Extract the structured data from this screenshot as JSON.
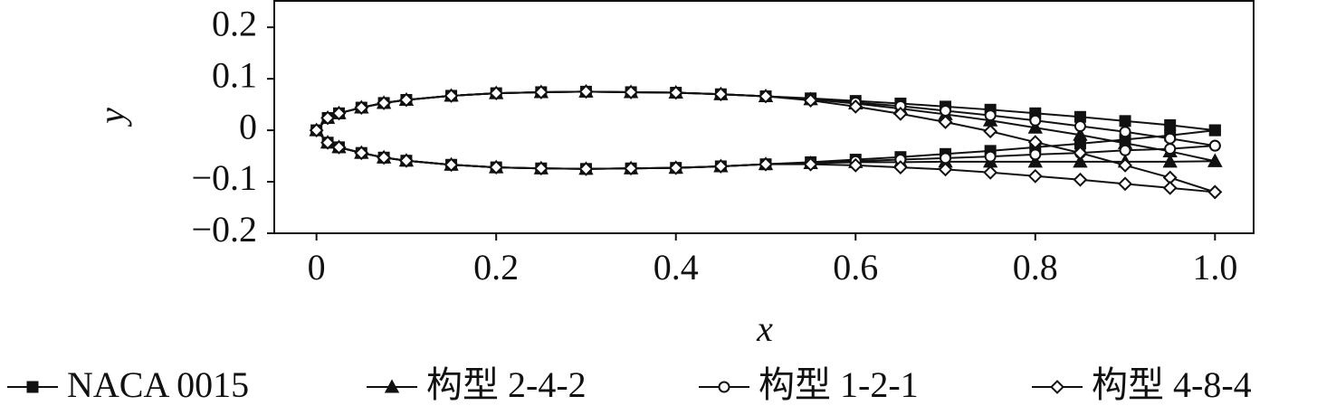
{
  "chart_data": {
    "type": "line",
    "x_label": "x",
    "y_label": "y",
    "x": [
      1.0,
      0.95,
      0.9,
      0.85,
      0.8,
      0.75,
      0.7,
      0.65,
      0.6,
      0.55,
      0.5,
      0.45,
      0.4,
      0.35,
      0.3,
      0.25,
      0.2,
      0.15,
      0.1,
      0.075,
      0.05,
      0.025,
      0.0125,
      0,
      0.0125,
      0.025,
      0.05,
      0.075,
      0.1,
      0.15,
      0.2,
      0.25,
      0.3,
      0.35,
      0.4,
      0.45,
      0.5,
      0.55,
      0.6,
      0.65,
      0.7,
      0.75,
      0.8,
      0.85,
      0.9,
      0.95,
      1.0
    ],
    "series": [
      {
        "name": "NACA 0015",
        "color": "#111111",
        "marker": "square",
        "values": [
          0,
          0.01,
          0.018,
          0.026,
          0.033,
          0.04,
          0.046,
          0.052,
          0.057,
          0.062,
          0.066,
          0.07,
          0.073,
          0.074,
          0.075,
          0.074,
          0.072,
          0.067,
          0.059,
          0.053,
          0.044,
          0.033,
          0.024,
          0,
          -0.024,
          -0.033,
          -0.044,
          -0.053,
          -0.059,
          -0.067,
          -0.072,
          -0.074,
          -0.075,
          -0.074,
          -0.073,
          -0.07,
          -0.066,
          -0.062,
          -0.057,
          -0.052,
          -0.046,
          -0.04,
          -0.033,
          -0.026,
          -0.018,
          -0.01,
          0
        ]
      },
      {
        "name": "构型 2-4-2",
        "color": "#111111",
        "marker": "triangle",
        "values": [
          -0.06,
          -0.041,
          -0.025,
          -0.009,
          0.005,
          0.019,
          0.031,
          0.042,
          0.052,
          0.06,
          0.066,
          0.07,
          0.073,
          0.074,
          0.075,
          0.074,
          0.072,
          0.067,
          0.059,
          0.053,
          0.044,
          0.033,
          0.024,
          0,
          -0.024,
          -0.033,
          -0.044,
          -0.053,
          -0.059,
          -0.067,
          -0.072,
          -0.074,
          -0.075,
          -0.074,
          -0.073,
          -0.07,
          -0.066,
          -0.064,
          -0.062,
          -0.062,
          -0.061,
          -0.061,
          -0.061,
          -0.061,
          -0.061,
          -0.061,
          -0.06
        ]
      },
      {
        "name": "构型 1-2-1",
        "color": "#111111",
        "marker": "circle",
        "values": [
          -0.03,
          -0.016,
          -0.003,
          0.008,
          0.019,
          0.029,
          0.038,
          0.047,
          0.054,
          0.061,
          0.066,
          0.07,
          0.073,
          0.074,
          0.075,
          0.074,
          0.072,
          0.067,
          0.059,
          0.053,
          0.044,
          0.033,
          0.024,
          0,
          -0.024,
          -0.033,
          -0.044,
          -0.053,
          -0.059,
          -0.067,
          -0.072,
          -0.074,
          -0.075,
          -0.074,
          -0.073,
          -0.07,
          -0.066,
          -0.063,
          -0.06,
          -0.057,
          -0.054,
          -0.051,
          -0.047,
          -0.044,
          -0.039,
          -0.036,
          -0.03
        ]
      },
      {
        "name": "构型 4-8-4",
        "color": "#111111",
        "marker": "diamond",
        "values": [
          -0.12,
          -0.092,
          -0.068,
          -0.044,
          -0.023,
          -0.002,
          0.016,
          0.032,
          0.046,
          0.058,
          0.066,
          0.07,
          0.073,
          0.074,
          0.075,
          0.074,
          0.072,
          0.067,
          0.059,
          0.053,
          0.044,
          0.033,
          0.024,
          0,
          -0.024,
          -0.033,
          -0.044,
          -0.053,
          -0.059,
          -0.067,
          -0.072,
          -0.074,
          -0.075,
          -0.074,
          -0.073,
          -0.07,
          -0.066,
          -0.066,
          -0.068,
          -0.072,
          -0.076,
          -0.082,
          -0.089,
          -0.096,
          -0.104,
          -0.112,
          -0.12
        ]
      }
    ],
    "xlim": [
      -0.047,
      1.043
    ],
    "ylim": [
      -0.2,
      0.253
    ],
    "xticks": [
      0,
      0.2,
      0.4,
      0.6,
      0.8,
      {
        "value": 1.0,
        "label": "1.0"
      }
    ],
    "yticks": [
      {
        "value": -0.2,
        "label": "−0.2"
      },
      {
        "value": -0.1,
        "label": "−0.1"
      },
      0,
      0.1,
      0.2
    ],
    "legend": "bottom"
  }
}
